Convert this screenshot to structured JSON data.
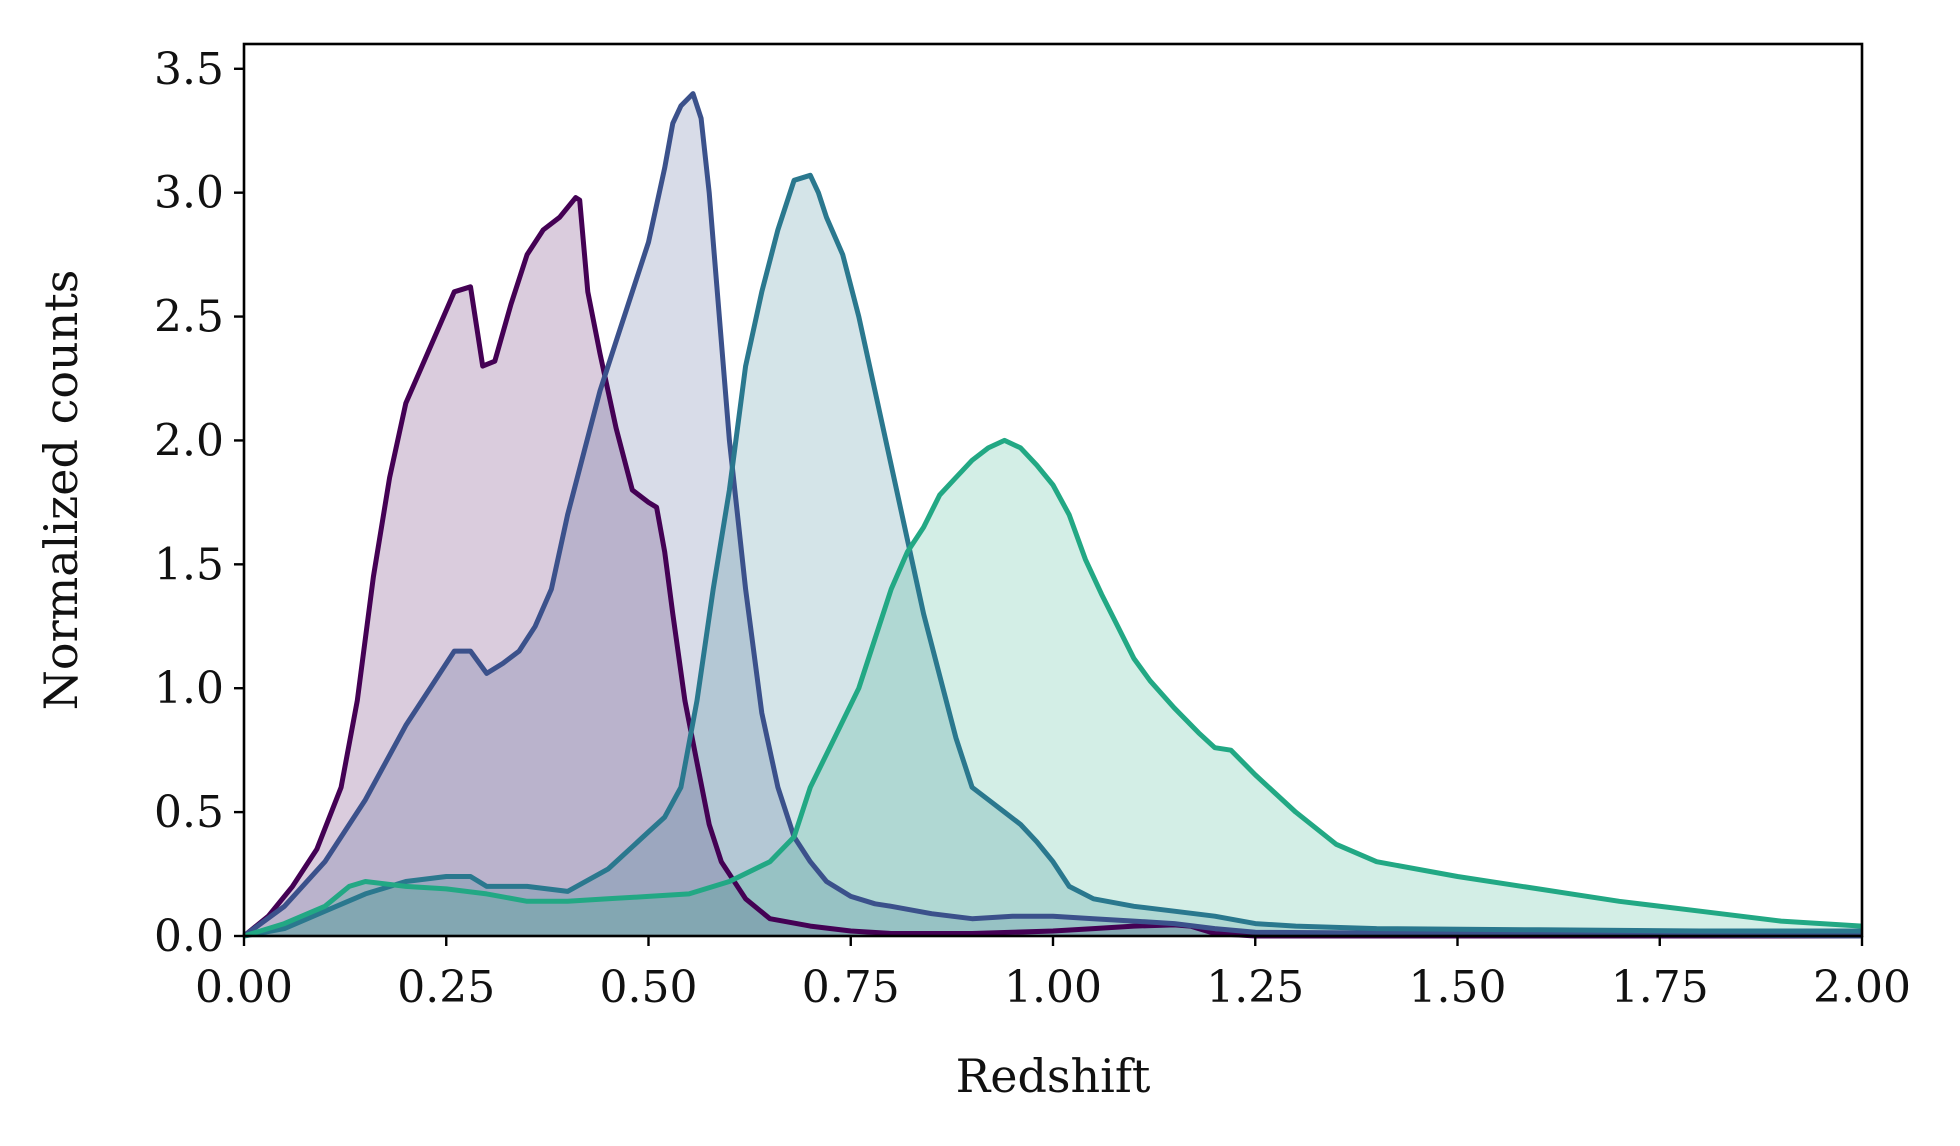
{
  "chart_data": {
    "type": "area",
    "title": "",
    "xlabel": "Redshift",
    "ylabel": "Normalized counts",
    "xlim": [
      0,
      2
    ],
    "ylim": [
      0,
      3.6
    ],
    "grid": false,
    "legend": "none",
    "x_ticks": [
      "0.00",
      "0.25",
      "0.50",
      "0.75",
      "1.00",
      "1.25",
      "1.50",
      "1.75",
      "2.00"
    ],
    "y_ticks": [
      "0.0",
      "0.5",
      "1.0",
      "1.5",
      "2.0",
      "2.5",
      "3.0",
      "3.5"
    ],
    "series": [
      {
        "color": "#440154",
        "x": [
          0.0,
          0.03,
          0.06,
          0.09,
          0.12,
          0.14,
          0.16,
          0.18,
          0.2,
          0.22,
          0.24,
          0.26,
          0.28,
          0.295,
          0.31,
          0.33,
          0.35,
          0.37,
          0.39,
          0.41,
          0.415,
          0.425,
          0.44,
          0.46,
          0.48,
          0.5,
          0.51,
          0.52,
          0.53,
          0.545,
          0.56,
          0.575,
          0.59,
          0.62,
          0.65,
          0.7,
          0.75,
          0.8,
          0.85,
          0.9,
          0.95,
          1.0,
          1.05,
          1.1,
          1.15,
          1.17,
          1.2,
          1.25,
          1.5,
          2.0
        ],
        "y": [
          0.0,
          0.08,
          0.2,
          0.35,
          0.6,
          0.95,
          1.45,
          1.85,
          2.15,
          2.3,
          2.45,
          2.6,
          2.62,
          2.3,
          2.32,
          2.55,
          2.75,
          2.85,
          2.9,
          2.98,
          2.97,
          2.6,
          2.35,
          2.05,
          1.8,
          1.75,
          1.73,
          1.55,
          1.3,
          0.95,
          0.7,
          0.45,
          0.3,
          0.15,
          0.07,
          0.04,
          0.02,
          0.01,
          0.01,
          0.01,
          0.015,
          0.02,
          0.03,
          0.04,
          0.045,
          0.04,
          0.01,
          0.0,
          0.0,
          0.0
        ]
      },
      {
        "color": "#3b518b",
        "x": [
          0.0,
          0.05,
          0.1,
          0.15,
          0.2,
          0.23,
          0.26,
          0.28,
          0.3,
          0.31,
          0.32,
          0.34,
          0.36,
          0.38,
          0.4,
          0.42,
          0.44,
          0.46,
          0.48,
          0.5,
          0.52,
          0.53,
          0.54,
          0.555,
          0.565,
          0.575,
          0.585,
          0.6,
          0.62,
          0.64,
          0.66,
          0.68,
          0.7,
          0.72,
          0.75,
          0.78,
          0.8,
          0.85,
          0.9,
          0.95,
          1.0,
          1.05,
          1.1,
          1.15,
          1.2,
          1.25,
          1.5,
          2.0
        ],
        "y": [
          0.0,
          0.12,
          0.3,
          0.55,
          0.85,
          1.0,
          1.15,
          1.15,
          1.06,
          1.08,
          1.1,
          1.15,
          1.25,
          1.4,
          1.7,
          1.95,
          2.2,
          2.4,
          2.6,
          2.8,
          3.1,
          3.28,
          3.35,
          3.4,
          3.3,
          3.0,
          2.6,
          2.0,
          1.4,
          0.9,
          0.6,
          0.4,
          0.3,
          0.22,
          0.16,
          0.13,
          0.12,
          0.09,
          0.07,
          0.08,
          0.08,
          0.07,
          0.06,
          0.05,
          0.03,
          0.015,
          0.01,
          0.0
        ]
      },
      {
        "color": "#2a788e",
        "x": [
          0.0,
          0.05,
          0.1,
          0.15,
          0.2,
          0.25,
          0.28,
          0.3,
          0.35,
          0.4,
          0.45,
          0.48,
          0.5,
          0.52,
          0.54,
          0.56,
          0.58,
          0.6,
          0.62,
          0.64,
          0.66,
          0.68,
          0.7,
          0.71,
          0.72,
          0.74,
          0.76,
          0.78,
          0.8,
          0.82,
          0.84,
          0.86,
          0.88,
          0.9,
          0.92,
          0.94,
          0.96,
          0.98,
          1.0,
          1.02,
          1.05,
          1.1,
          1.15,
          1.2,
          1.25,
          1.3,
          1.4,
          1.6,
          1.8,
          2.0
        ],
        "y": [
          0.0,
          0.03,
          0.1,
          0.17,
          0.22,
          0.24,
          0.24,
          0.2,
          0.2,
          0.18,
          0.27,
          0.36,
          0.42,
          0.48,
          0.6,
          0.95,
          1.4,
          1.8,
          2.3,
          2.6,
          2.85,
          3.05,
          3.07,
          3.0,
          2.9,
          2.75,
          2.5,
          2.2,
          1.9,
          1.6,
          1.3,
          1.05,
          0.8,
          0.6,
          0.55,
          0.5,
          0.45,
          0.38,
          0.3,
          0.2,
          0.15,
          0.12,
          0.1,
          0.08,
          0.05,
          0.04,
          0.03,
          0.025,
          0.02,
          0.02
        ]
      },
      {
        "color": "#22a884",
        "x": [
          0.0,
          0.05,
          0.1,
          0.13,
          0.15,
          0.2,
          0.25,
          0.3,
          0.35,
          0.4,
          0.45,
          0.5,
          0.55,
          0.6,
          0.65,
          0.68,
          0.7,
          0.73,
          0.76,
          0.78,
          0.8,
          0.82,
          0.84,
          0.86,
          0.88,
          0.9,
          0.92,
          0.94,
          0.96,
          0.98,
          1.0,
          1.02,
          1.04,
          1.06,
          1.08,
          1.1,
          1.12,
          1.15,
          1.18,
          1.2,
          1.22,
          1.25,
          1.3,
          1.35,
          1.4,
          1.5,
          1.6,
          1.7,
          1.8,
          1.9,
          2.0
        ],
        "y": [
          0.0,
          0.05,
          0.12,
          0.2,
          0.22,
          0.2,
          0.19,
          0.17,
          0.14,
          0.14,
          0.15,
          0.16,
          0.17,
          0.22,
          0.3,
          0.4,
          0.6,
          0.8,
          1.0,
          1.2,
          1.4,
          1.55,
          1.65,
          1.78,
          1.85,
          1.92,
          1.97,
          2.0,
          1.97,
          1.9,
          1.82,
          1.7,
          1.52,
          1.38,
          1.25,
          1.12,
          1.03,
          0.92,
          0.82,
          0.76,
          0.75,
          0.65,
          0.5,
          0.37,
          0.3,
          0.24,
          0.19,
          0.14,
          0.1,
          0.06,
          0.04
        ]
      }
    ]
  }
}
